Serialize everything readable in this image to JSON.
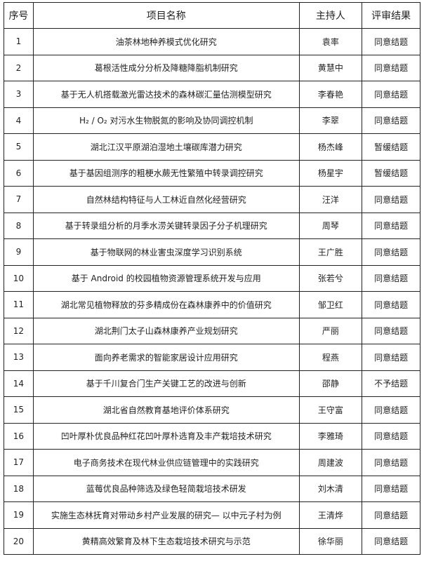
{
  "headers": [
    "序号",
    "项目名称",
    "主持人",
    "评审结果"
  ],
  "rows": [
    [
      "1",
      "油茶林地种养模式优化研究",
      "袁率",
      "同意结题"
    ],
    [
      "2",
      "葛根活性成分分析及降糖降脂机制研究",
      "黄慧中",
      "同意结题"
    ],
    [
      "3",
      "基于无人机搭载激光雷达技术的森林碳汇量估测模型研究",
      "李春艳",
      "同意结题"
    ],
    [
      "4",
      "H₂ / O₂ 对污水生物脱氮的影响及协同调控机制",
      "李翠",
      "同意结题"
    ],
    [
      "5",
      "湖北江汉平原湖泊湿地土壤碳库潜力研究",
      "杨杰峰",
      "暂缓结题"
    ],
    [
      "6",
      "基于基因组测序的粗梗水蕨无性繁殖中转录调控研究",
      "杨星宇",
      "暂缓结题"
    ],
    [
      "7",
      "自然林结构特征与人工林近自然化经营研究",
      "汪洋",
      "同意结题"
    ],
    [
      "8",
      "基于转录组分析的月季水涝关键转录因子分子机理研究",
      "周琴",
      "同意结题"
    ],
    [
      "9",
      "基于物联网的林业害虫深度学习识别系统",
      "王广胜",
      "同意结题"
    ],
    [
      "10",
      "基于 Android 的校园植物资源管理系统开发与应用",
      "张若兮",
      "同意结题"
    ],
    [
      "11",
      "湖北常见植物释放的芬多精成份在森林康养中的价值研究",
      "邹卫红",
      "同意结题"
    ],
    [
      "12",
      "湖北荆门太子山森林康养产业规划研究",
      "严丽",
      "同意结题"
    ],
    [
      "13",
      "面向养老需求的智能家居设计应用研究",
      "程燕",
      "同意结题"
    ],
    [
      "14",
      "基于千川复合门生产关键工艺的改进与创新",
      "邵静",
      "不予结题"
    ],
    [
      "15",
      "湖北省自然教育基地评价体系研究",
      "王守富",
      "同意结题"
    ],
    [
      "16",
      "凹叶厚朴优良品种红花凹叶厚朴选育及丰产栽培技术研究",
      "李雅琦",
      "同意结题"
    ],
    [
      "17",
      "电子商务技术在现代林业供应链管理中的实践研究",
      "周建波",
      "同意结题"
    ],
    [
      "18",
      "蓝莓优良品种筛选及绿色轻简栽培技术研发",
      "刘木清",
      "同意结题"
    ],
    [
      "19",
      "实施生态林抚育对带动乡村产业发展的研究— 以中元子村为例",
      "王清烨",
      "同意结题"
    ],
    [
      "20",
      "黄精高效繁育及林下生态栽培技术研究与示范",
      "徐华丽",
      "同意结题"
    ]
  ]
}
